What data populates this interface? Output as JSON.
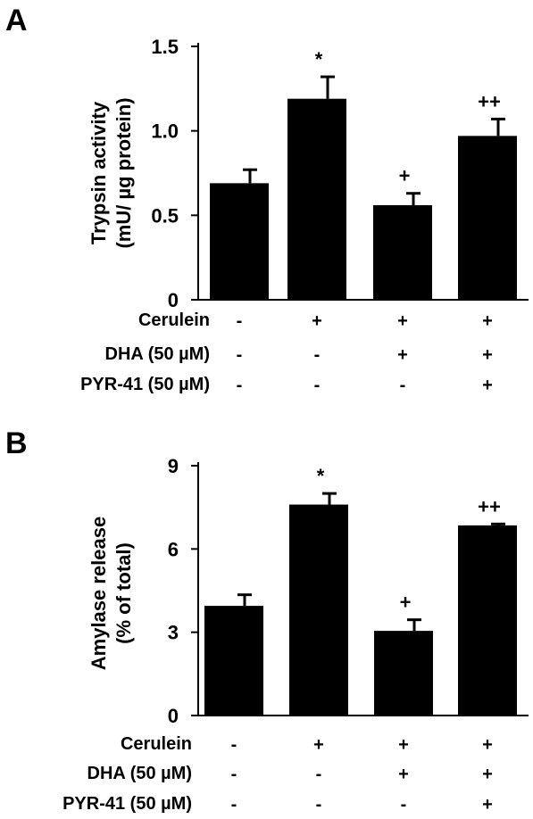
{
  "chart_data": [
    {
      "type": "bar",
      "panel_label": "A",
      "ylabel_lines": [
        "Trypsin activity",
        "(mU/ µg protein)"
      ],
      "ylim": [
        0,
        1.5
      ],
      "yticks": [
        0,
        0.5,
        1.0,
        1.5
      ],
      "ytick_labels": [
        "0",
        "0.5",
        "1.0",
        "1.5"
      ],
      "values": [
        0.69,
        1.19,
        0.56,
        0.97
      ],
      "errors": [
        0.08,
        0.13,
        0.07,
        0.1
      ],
      "significance": [
        "",
        "*",
        "+",
        "++"
      ],
      "conditions": [
        {
          "label": "Cerulein",
          "marks": [
            "-",
            "+",
            "+",
            "+"
          ]
        },
        {
          "label": "DHA (50 µM)",
          "marks": [
            "-",
            "-",
            "+",
            "+"
          ]
        },
        {
          "label": "PYR-41 (50 µM)",
          "marks": [
            "-",
            "-",
            "-",
            "+"
          ]
        }
      ]
    },
    {
      "type": "bar",
      "panel_label": "B",
      "ylabel_lines": [
        "Amylase release",
        "(% of total)"
      ],
      "ylim": [
        0,
        9
      ],
      "yticks": [
        0,
        3,
        6,
        9
      ],
      "ytick_labels": [
        "0",
        "3",
        "6",
        "9"
      ],
      "values": [
        3.95,
        7.6,
        3.05,
        6.85
      ],
      "errors": [
        0.4,
        0.4,
        0.4,
        0.05
      ],
      "significance": [
        "",
        "*",
        "+",
        "++"
      ],
      "conditions": [
        {
          "label": "Cerulein",
          "marks": [
            "-",
            "+",
            "+",
            "+"
          ]
        },
        {
          "label": "DHA (50 µM)",
          "marks": [
            "-",
            "-",
            "+",
            "+"
          ]
        },
        {
          "label": "PYR-41 (50 µM)",
          "marks": [
            "-",
            "-",
            "-",
            "+"
          ]
        }
      ]
    }
  ],
  "colors": {
    "bar": "#000000",
    "axis": "#000000",
    "background": "#ffffff"
  }
}
